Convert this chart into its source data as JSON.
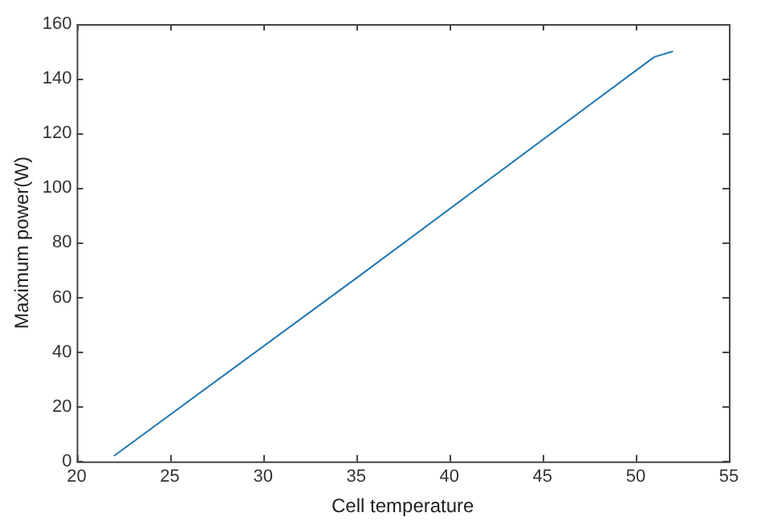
{
  "chart_data": {
    "type": "line",
    "xlabel": "Cell temperature",
    "ylabel": "Maximum power(W)",
    "x": [
      22,
      35,
      51,
      52
    ],
    "series": [
      {
        "color": "#1f77b4",
        "values": [
          2,
          67,
          148,
          150
        ]
      }
    ],
    "xlim": [
      20,
      55
    ],
    "xticks": [
      20,
      25,
      30,
      35,
      40,
      45,
      50,
      55
    ],
    "ylim": [
      0,
      160
    ],
    "yticks": [
      0,
      20,
      40,
      60,
      80,
      100,
      120,
      140,
      160
    ],
    "grid": false,
    "legend": false,
    "marker": "none",
    "line_style": "solid"
  }
}
